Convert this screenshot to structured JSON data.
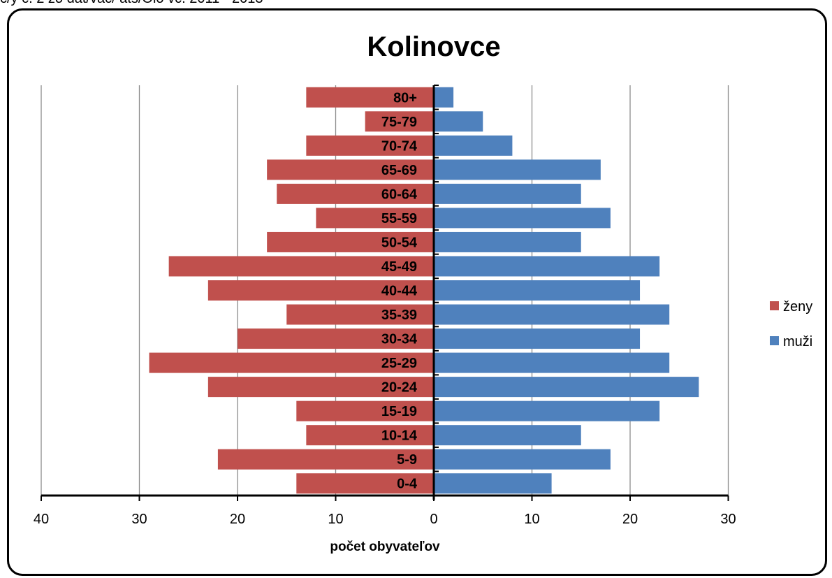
{
  "chart_data": {
    "type": "bar",
    "title": "Kolinovce",
    "xlabel": "počet obyvateľov",
    "ylabel": "",
    "categories": [
      "80+",
      "75-79",
      "70-74",
      "65-69",
      "60-64",
      "55-59",
      "50-54",
      "45-49",
      "40-44",
      "35-39",
      "30-34",
      "25-29",
      "20-24",
      "15-19",
      "10-14",
      "5-9",
      "0-4"
    ],
    "series": [
      {
        "name": "ženy",
        "color": "#c0504d",
        "values": [
          13,
          7,
          13,
          17,
          16,
          12,
          17,
          27,
          23,
          15,
          20,
          29,
          23,
          14,
          13,
          22,
          14
        ]
      },
      {
        "name": "muži",
        "color": "#4f81bd",
        "values": [
          2,
          5,
          8,
          17,
          15,
          18,
          15,
          23,
          21,
          24,
          21,
          24,
          27,
          23,
          15,
          18,
          12
        ]
      }
    ],
    "xlim": [
      -40,
      30
    ],
    "x_ticks": [
      -40,
      -30,
      -20,
      -10,
      0,
      10,
      20,
      30
    ],
    "x_tick_labels": [
      "40",
      "30",
      "20",
      "10",
      "0",
      "10",
      "20",
      "30"
    ],
    "orientation": "horizontal population pyramid",
    "grid": true,
    "legend_position": "right"
  },
  "partial_header_text": "c/y c. 2 zo dat/vac/ ats/Olo vc. 2011 - 2013"
}
